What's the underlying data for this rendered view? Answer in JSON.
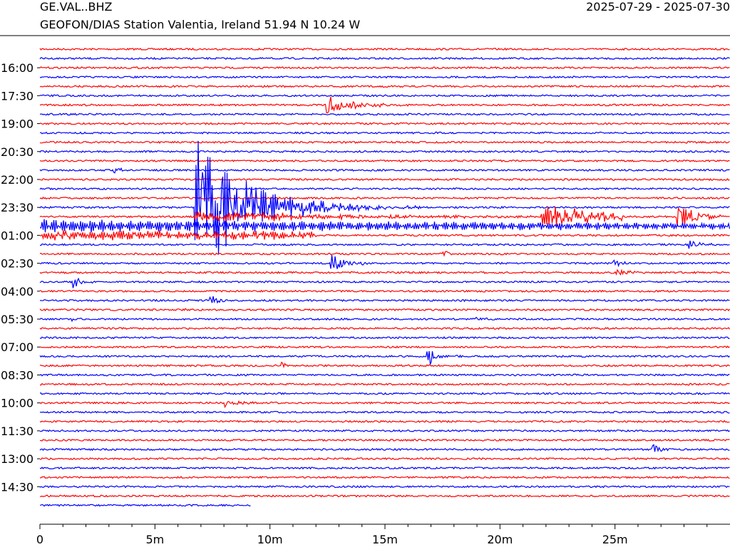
{
  "header": {
    "station": "GE.VAL..BHZ",
    "description": "GEOFON/DIAS Station Valentia, Ireland  51.94 N 10.24 W",
    "date_range": "2025-07-29 - 2025-07-30"
  },
  "chart_data": {
    "type": "helicorder",
    "title": "GE.VAL..BHZ",
    "subtitle": "GEOFON/DIAS Station Valentia, Ireland  51.94 N 10.24 W",
    "date_range": "2025-07-29 - 2025-07-30",
    "xlabel": "",
    "ylabel": "",
    "xlim_minutes": [
      0,
      30
    ],
    "x_ticks": [
      {
        "minutes": 0,
        "label": "0"
      },
      {
        "minutes": 5,
        "label": "5m"
      },
      {
        "minutes": 10,
        "label": "10m"
      },
      {
        "minutes": 15,
        "label": "15m"
      },
      {
        "minutes": 20,
        "label": "20m"
      },
      {
        "minutes": 25,
        "label": "25m"
      }
    ],
    "trace_count": 50,
    "minutes_per_trace": 30,
    "first_trace_start": "15:00",
    "last_trace_end_minute": 9.2,
    "colors": [
      "#ff0000",
      "#0000ff"
    ],
    "time_labels": [
      {
        "trace": 2,
        "label": "16:00"
      },
      {
        "trace": 5,
        "label": "17:30"
      },
      {
        "trace": 8,
        "label": "19:00"
      },
      {
        "trace": 11,
        "label": "20:30"
      },
      {
        "trace": 14,
        "label": "22:00"
      },
      {
        "trace": 17,
        "label": "23:30"
      },
      {
        "trace": 20,
        "label": "01:00"
      },
      {
        "trace": 23,
        "label": "02:30"
      },
      {
        "trace": 26,
        "label": "04:00"
      },
      {
        "trace": 29,
        "label": "05:30"
      },
      {
        "trace": 32,
        "label": "07:00"
      },
      {
        "trace": 35,
        "label": "08:30"
      },
      {
        "trace": 38,
        "label": "10:00"
      },
      {
        "trace": 41,
        "label": "11:30"
      },
      {
        "trace": 44,
        "label": "13:00"
      },
      {
        "trace": 47,
        "label": "14:30"
      }
    ],
    "events": [
      {
        "trace": 6,
        "start_min": 12.45,
        "dur_min": 4.0,
        "amp": 1.0,
        "decay_min": 1.2
      },
      {
        "trace": 13,
        "start_min": 3.2,
        "dur_min": 0.7,
        "amp": 0.4,
        "decay_min": 0.3
      },
      {
        "trace": 17,
        "start_min": 6.7,
        "dur_min": 23.0,
        "amp": 9.0,
        "decay_min": 2.2,
        "wave": 0.4
      },
      {
        "trace": 18,
        "start_min": 6.7,
        "dur_min": 18.0,
        "amp": 0.8,
        "decay_min": 6.0,
        "wave": 0.5
      },
      {
        "trace": 18,
        "start_min": 21.8,
        "dur_min": 3.5,
        "amp": 1.4,
        "decay_min": 4.0,
        "wave": 0.4
      },
      {
        "trace": 18,
        "start_min": 27.7,
        "dur_min": 2.3,
        "amp": 2.0,
        "decay_min": 0.8,
        "wave": 0.3
      },
      {
        "trace": 19,
        "start_min": 0,
        "dur_min": 30,
        "amp": 0.7,
        "decay_min": 40,
        "wave": 0.8
      },
      {
        "trace": 20,
        "start_min": 0,
        "dur_min": 12.0,
        "amp": 0.6,
        "decay_min": 40,
        "wave": 0.6
      },
      {
        "trace": 21,
        "start_min": 28.2,
        "dur_min": 1.0,
        "amp": 0.6,
        "decay_min": 0.5
      },
      {
        "trace": 22,
        "start_min": 17.5,
        "dur_min": 0.6,
        "amp": 0.4,
        "decay_min": 0.3
      },
      {
        "trace": 23,
        "start_min": 12.6,
        "dur_min": 1.7,
        "amp": 1.2,
        "decay_min": 0.6
      },
      {
        "trace": 23,
        "start_min": 24.9,
        "dur_min": 0.8,
        "amp": 0.5,
        "decay_min": 0.3
      },
      {
        "trace": 24,
        "start_min": 25.0,
        "dur_min": 1.5,
        "amp": 0.4,
        "decay_min": 0.6
      },
      {
        "trace": 25,
        "start_min": 1.4,
        "dur_min": 0.9,
        "amp": 1.2,
        "decay_min": 0.3
      },
      {
        "trace": 27,
        "start_min": 7.3,
        "dur_min": 0.8,
        "amp": 1.0,
        "decay_min": 0.3
      },
      {
        "trace": 28,
        "start_min": 6.3,
        "dur_min": 0.6,
        "amp": 0.3,
        "decay_min": 0.3
      },
      {
        "trace": 29,
        "start_min": 1.3,
        "dur_min": 0.6,
        "amp": 0.3,
        "decay_min": 0.3
      },
      {
        "trace": 29,
        "start_min": 18.9,
        "dur_min": 0.6,
        "amp": 0.3,
        "decay_min": 0.3
      },
      {
        "trace": 33,
        "start_min": 16.8,
        "dur_min": 1.6,
        "amp": 1.4,
        "decay_min": 0.4
      },
      {
        "trace": 34,
        "start_min": 10.5,
        "dur_min": 0.6,
        "amp": 0.3,
        "decay_min": 0.3
      },
      {
        "trace": 38,
        "start_min": 8.0,
        "dur_min": 1.4,
        "amp": 0.5,
        "decay_min": 0.5
      },
      {
        "trace": 43,
        "start_min": 26.6,
        "dur_min": 0.8,
        "amp": 0.8,
        "decay_min": 0.3
      }
    ]
  }
}
